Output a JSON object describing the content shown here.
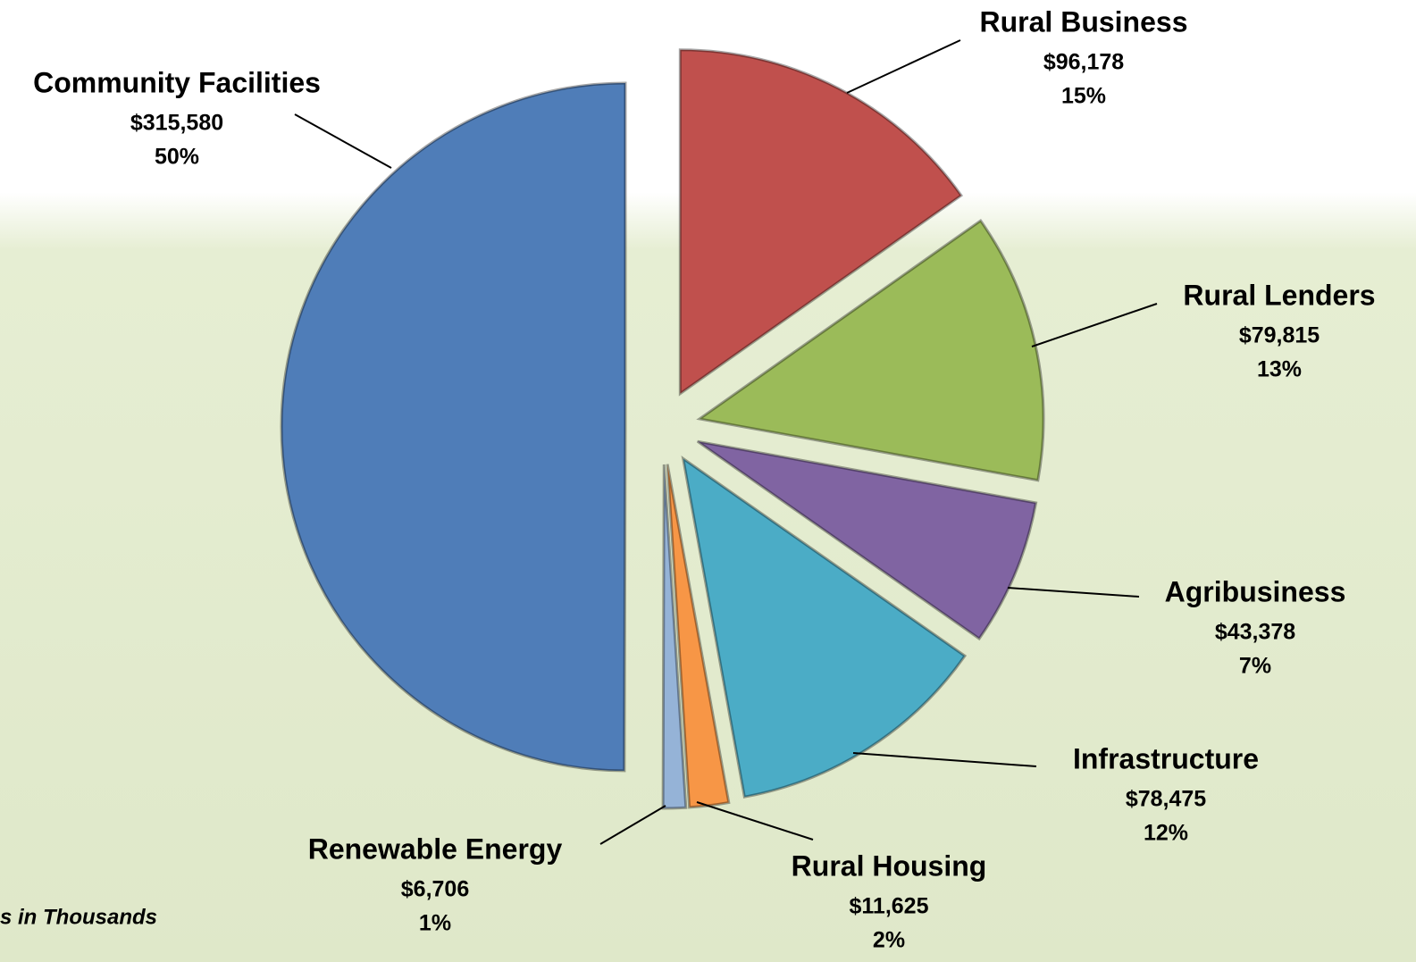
{
  "chart_data": {
    "type": "pie",
    "categories": [
      "Rural Business",
      "Rural Lenders",
      "Agribusiness",
      "Infrastructure",
      "Rural Housing",
      "Renewable Energy",
      "Community Facilities"
    ],
    "values": [
      96178,
      79815,
      43378,
      78475,
      11625,
      6706,
      315580
    ],
    "value_labels": [
      "$96,178",
      "$79,815",
      "$43,378",
      "$78,475",
      "$11,625",
      "$6,706",
      "$315,580"
    ],
    "percent_labels": [
      "15%",
      "13%",
      "7%",
      "12%",
      "2%",
      "1%",
      "50%"
    ],
    "colors": [
      "#c0504d",
      "#9bbb59",
      "#8064a2",
      "#4bacc6",
      "#f79646",
      "#95b3d7",
      "#4f7db8"
    ],
    "note": "s in Thousands"
  }
}
